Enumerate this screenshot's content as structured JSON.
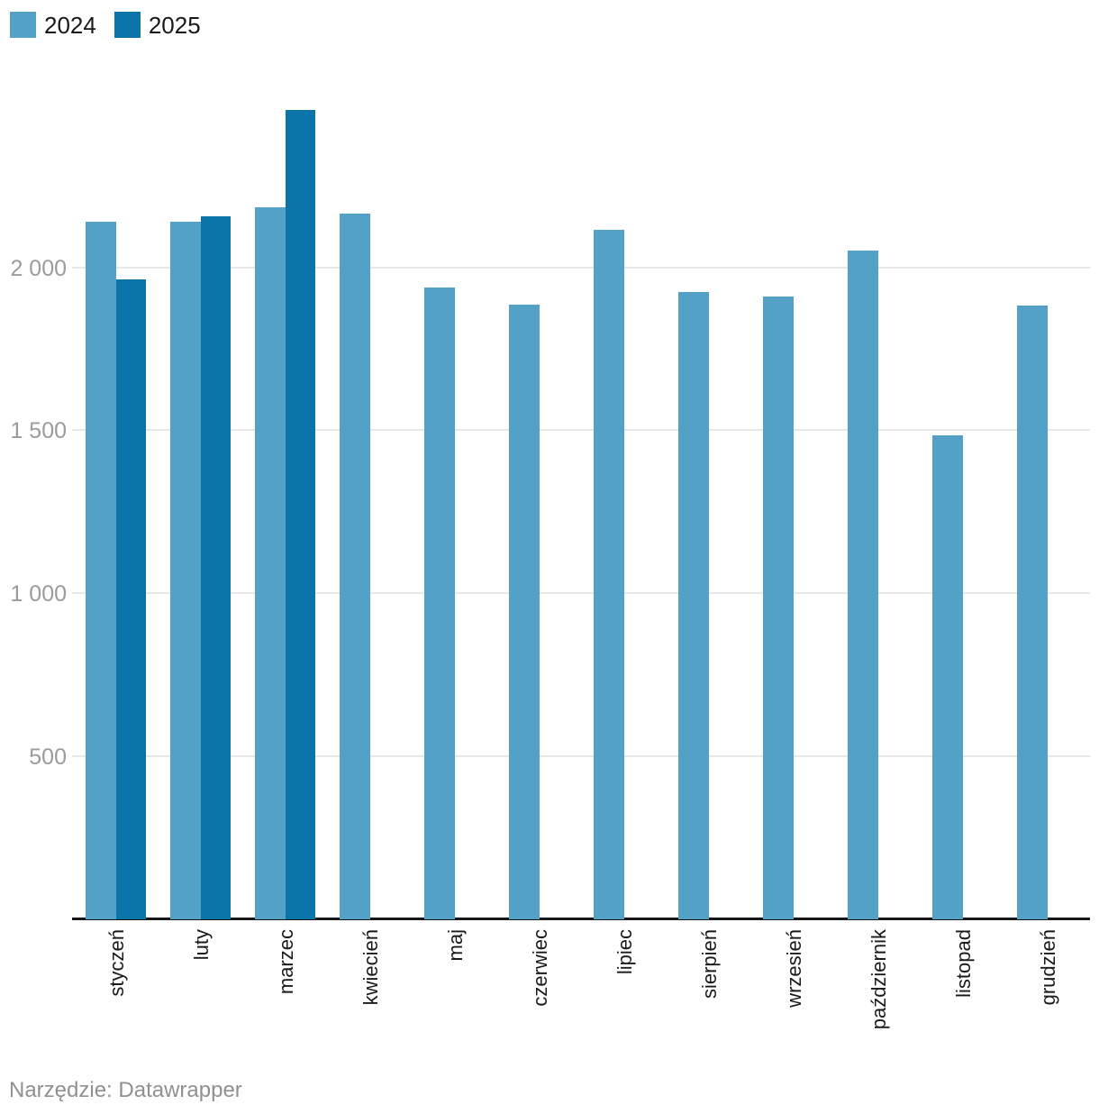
{
  "legend": {
    "items": [
      {
        "label": "2024",
        "color": "#54a1c8"
      },
      {
        "label": "2025",
        "color": "#0b74a9"
      }
    ]
  },
  "footer": {
    "text": "Narzędzie: Datawrapper"
  },
  "chart_data": {
    "type": "bar",
    "title": "",
    "xlabel": "",
    "ylabel": "",
    "categories": [
      "styczeń",
      "luty",
      "marzec",
      "kwiecień",
      "maj",
      "czerwiec",
      "lipiec",
      "sierpień",
      "wrzesień",
      "październik",
      "listopad",
      "grudzień"
    ],
    "series": [
      {
        "name": "2024",
        "color": "#54a1c8",
        "values": [
          2140,
          2140,
          2184,
          2165,
          1939,
          1886,
          2115,
          1924,
          1911,
          2051,
          1484,
          1882
        ]
      },
      {
        "name": "2025",
        "color": "#0b74a9",
        "values": [
          1963,
          2156,
          2482,
          null,
          null,
          null,
          null,
          null,
          null,
          null,
          null,
          null
        ]
      }
    ],
    "ylim": [
      0,
      2500
    ],
    "yticks": [
      500,
      1000,
      1500,
      2000
    ],
    "ytick_labels": [
      "500",
      "1 000",
      "1 500",
      "2 000"
    ],
    "grid": true,
    "legend_position": "top-left",
    "axis_colors": {
      "gridline": "#e7e7e7",
      "baseline": "#18181a",
      "ytick_text": "#9b9b9b",
      "xtick_text": "#1a1a1a"
    }
  }
}
